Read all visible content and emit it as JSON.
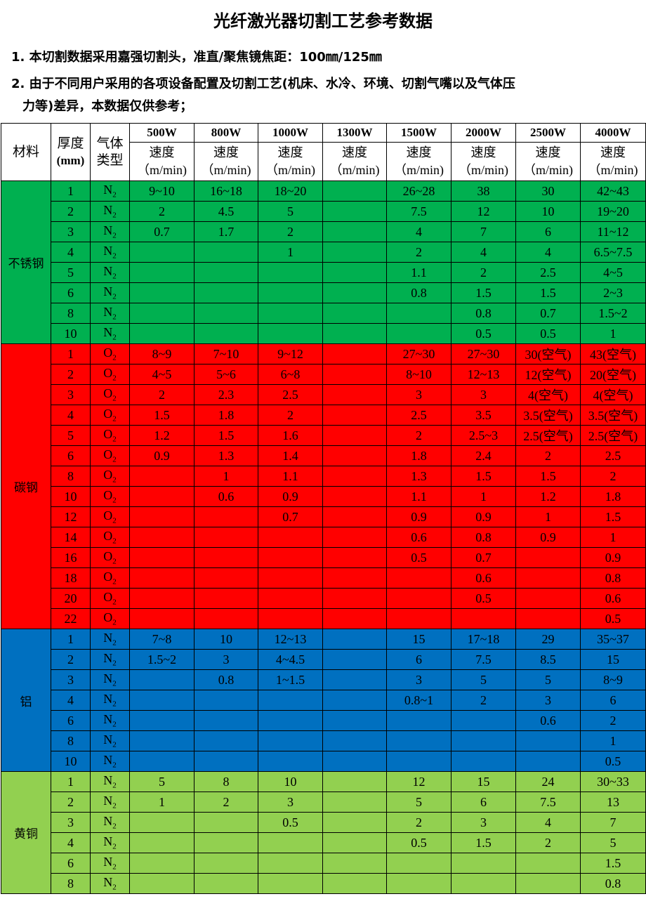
{
  "title": "光纤激光器切割工艺参考数据",
  "notes": [
    "1. 本切割数据采用嘉强切割头，准直/聚焦镜焦距：100㎜/125㎜",
    "2. 由于不同用户采用的各项设备配置及切割工艺(机床、水冷、环境、切割气嘴以及气体压",
    "力等)差异，本数据仅供参考；"
  ],
  "header": {
    "material": "材料",
    "thickness": "厚度",
    "thickness_unit": "(mm)",
    "gas": "气体类型",
    "speed": "速度",
    "speed_unit": "（m/min)",
    "powers": [
      "500W",
      "800W",
      "1000W",
      "1300W",
      "1500W",
      "2000W",
      "2500W",
      "4000W"
    ]
  },
  "groups": [
    {
      "material": "不锈钢",
      "color": "#00b050",
      "rows": [
        [
          "1",
          "N2",
          "9~10",
          "16~18",
          "18~20",
          "",
          "26~28",
          "38",
          "30",
          "42~43"
        ],
        [
          "2",
          "N2",
          "2",
          "4.5",
          "5",
          "",
          "7.5",
          "12",
          "10",
          "19~20"
        ],
        [
          "3",
          "N2",
          "0.7",
          "1.7",
          "2",
          "",
          "4",
          "7",
          "6",
          "11~12"
        ],
        [
          "4",
          "N2",
          "",
          "",
          "1",
          "",
          "2",
          "4",
          "4",
          "6.5~7.5"
        ],
        [
          "5",
          "N2",
          "",
          "",
          "",
          "",
          "1.1",
          "2",
          "2.5",
          "4~5"
        ],
        [
          "6",
          "N2",
          "",
          "",
          "",
          "",
          "0.8",
          "1.5",
          "1.5",
          "2~3"
        ],
        [
          "8",
          "N2",
          "",
          "",
          "",
          "",
          "",
          "0.8",
          "0.7",
          "1.5~2"
        ],
        [
          "10",
          "N2",
          "",
          "",
          "",
          "",
          "",
          "0.5",
          "0.5",
          "1"
        ]
      ]
    },
    {
      "material": "碳钢",
      "color": "#ff0000",
      "rows": [
        [
          "1",
          "O2",
          "8~9",
          "7~10",
          "9~12",
          "",
          "27~30",
          "27~30",
          "30(空气)",
          "43(空气)"
        ],
        [
          "2",
          "O2",
          "4~5",
          "5~6",
          "6~8",
          "",
          "8~10",
          "12~13",
          "12(空气)",
          "20(空气)"
        ],
        [
          "3",
          "O2",
          "2",
          "2.3",
          "2.5",
          "",
          "3",
          "3",
          "4(空气)",
          "4(空气)"
        ],
        [
          "4",
          "O2",
          "1.5",
          "1.8",
          "2",
          "",
          "2.5",
          "3.5",
          "3.5(空气)",
          "3.5(空气)"
        ],
        [
          "5",
          "O2",
          "1.2",
          "1.5",
          "1.6",
          "",
          "2",
          "2.5~3",
          "2.5(空气)",
          "2.5(空气)"
        ],
        [
          "6",
          "O2",
          "0.9",
          "1.3",
          "1.4",
          "",
          "1.8",
          "2.4",
          "2",
          "2.5"
        ],
        [
          "8",
          "O2",
          "",
          "1",
          "1.1",
          "",
          "1.3",
          "1.5",
          "1.5",
          "2"
        ],
        [
          "10",
          "O2",
          "",
          "0.6",
          "0.9",
          "",
          "1.1",
          "1",
          "1.2",
          "1.8"
        ],
        [
          "12",
          "O2",
          "",
          "",
          "0.7",
          "",
          "0.9",
          "0.9",
          "1",
          "1.5"
        ],
        [
          "14",
          "O2",
          "",
          "",
          "",
          "",
          "0.6",
          "0.8",
          "0.9",
          "1"
        ],
        [
          "16",
          "O2",
          "",
          "",
          "",
          "",
          "0.5",
          "0.7",
          "",
          "0.9"
        ],
        [
          "18",
          "O2",
          "",
          "",
          "",
          "",
          "",
          "0.6",
          "",
          "0.8"
        ],
        [
          "20",
          "O2",
          "",
          "",
          "",
          "",
          "",
          "0.5",
          "",
          "0.6"
        ],
        [
          "22",
          "O2",
          "",
          "",
          "",
          "",
          "",
          "",
          "",
          "0.5"
        ]
      ]
    },
    {
      "material": "铝",
      "color": "#0070c0",
      "rows": [
        [
          "1",
          "N2",
          "7~8",
          "10",
          "12~13",
          "",
          "15",
          "17~18",
          "29",
          "35~37"
        ],
        [
          "2",
          "N2",
          "1.5~2",
          "3",
          "4~4.5",
          "",
          "6",
          "7.5",
          "8.5",
          "15"
        ],
        [
          "3",
          "N2",
          "",
          "0.8",
          "1~1.5",
          "",
          "3",
          "5",
          "5",
          "8~9"
        ],
        [
          "4",
          "N2",
          "",
          "",
          "",
          "",
          "0.8~1",
          "2",
          "3",
          "6"
        ],
        [
          "6",
          "N2",
          "",
          "",
          "",
          "",
          "",
          "",
          "0.6",
          "2"
        ],
        [
          "8",
          "N2",
          "",
          "",
          "",
          "",
          "",
          "",
          "",
          "1"
        ],
        [
          "10",
          "N2",
          "",
          "",
          "",
          "",
          "",
          "",
          "",
          "0.5"
        ]
      ]
    },
    {
      "material": "黄铜",
      "color": "#92d050",
      "rows": [
        [
          "1",
          "N2",
          "5",
          "8",
          "10",
          "",
          "12",
          "15",
          "24",
          "30~33"
        ],
        [
          "2",
          "N2",
          "1",
          "2",
          "3",
          "",
          "5",
          "6",
          "7.5",
          "13"
        ],
        [
          "3",
          "N2",
          "",
          "",
          "0.5",
          "",
          "2",
          "3",
          "4",
          "7"
        ],
        [
          "4",
          "N2",
          "",
          "",
          "",
          "",
          "0.5",
          "1.5",
          "2",
          "5"
        ],
        [
          "6",
          "N2",
          "",
          "",
          "",
          "",
          "",
          "",
          "",
          "1.5"
        ],
        [
          "8",
          "N2",
          "",
          "",
          "",
          "",
          "",
          "",
          "",
          "0.8"
        ]
      ]
    }
  ]
}
